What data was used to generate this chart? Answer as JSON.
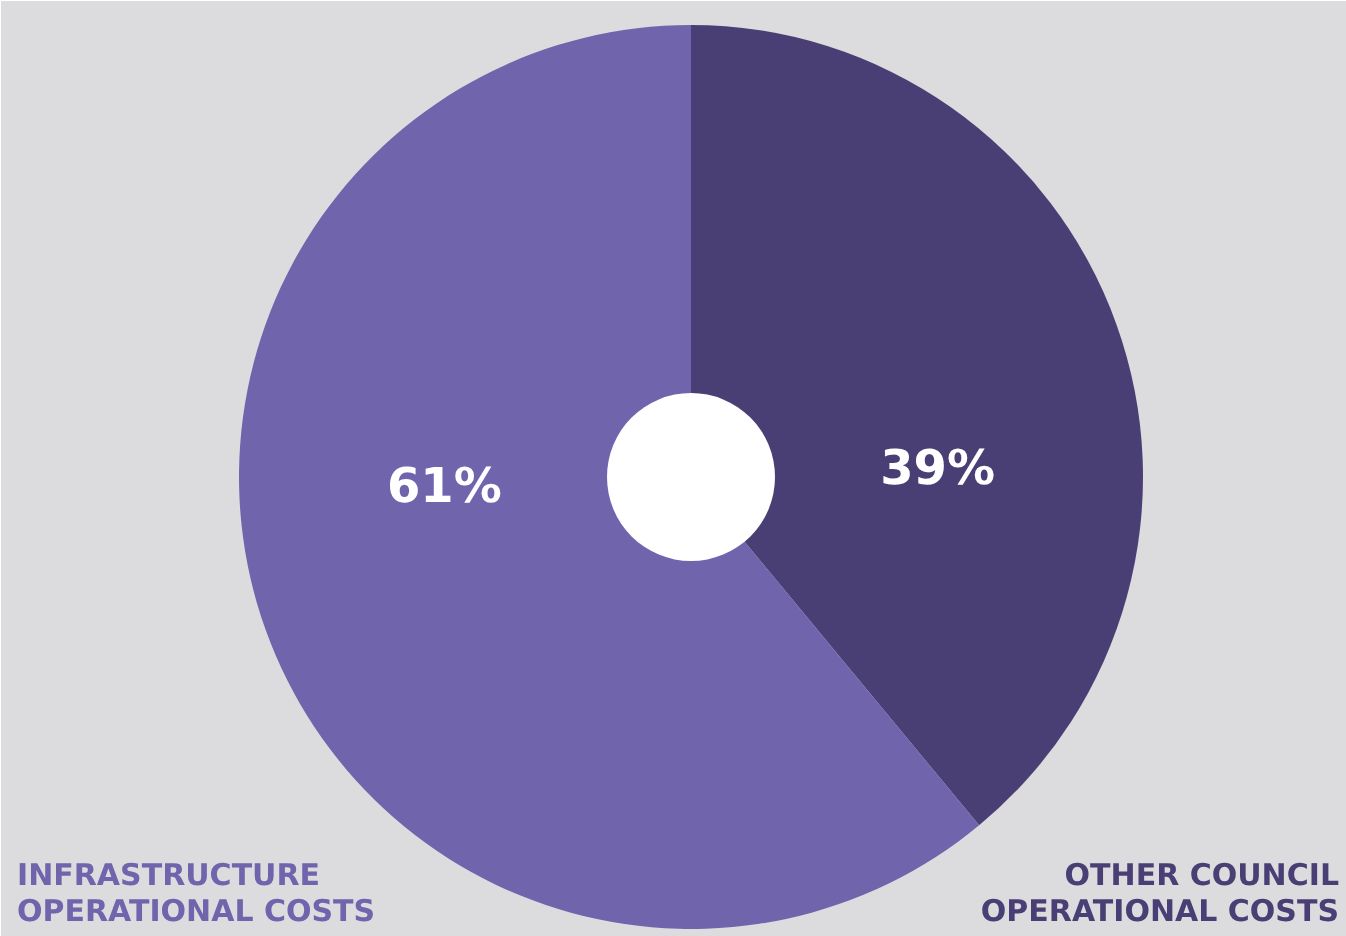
{
  "chart_data": {
    "type": "pie",
    "categories": [
      "OTHER COUNCIL OPERATIONAL COSTS",
      "INFRASTRUCTURE OPERATIONAL COSTS"
    ],
    "values": [
      39,
      61
    ],
    "colors": [
      "#4a3f75",
      "#7064ad"
    ],
    "value_labels": [
      "39%",
      "61%"
    ]
  }
}
